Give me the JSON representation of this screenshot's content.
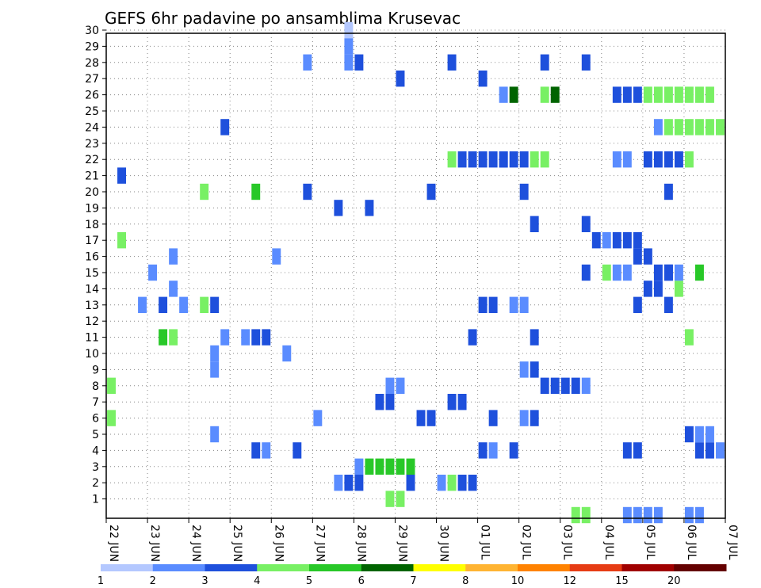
{
  "chart_data": {
    "type": "heatmap",
    "title": "GEFS 6hr padavine po ansamblima Krusevac",
    "xlabel": "",
    "ylabel": "",
    "x_ticks": [
      "22 JUN",
      "23 JUN",
      "24 JUN",
      "25 JUN",
      "26 JUN",
      "27 JUN",
      "28 JUN",
      "29 JUN",
      "30 JUN",
      "01 JUL",
      "02 JUL",
      "03 JUL",
      "04 JUL",
      "05 JUL",
      "06 JUL",
      "07 JUL"
    ],
    "y_ticks": [
      1,
      2,
      3,
      4,
      5,
      6,
      7,
      8,
      9,
      10,
      11,
      12,
      13,
      14,
      15,
      16,
      17,
      18,
      19,
      20,
      21,
      22,
      23,
      24,
      25,
      26,
      27,
      28,
      29,
      30
    ],
    "xlim": [
      0,
      60
    ],
    "ylim": [
      0,
      30
    ],
    "grid": true,
    "colorbar": {
      "labels": [
        "1",
        "2",
        "3",
        "4",
        "5",
        "6",
        "7",
        "8",
        "10",
        "12",
        "15",
        "20"
      ],
      "colors": [
        "#b4c8ff",
        "#5a8cff",
        "#1e50dc",
        "#78f064",
        "#28c828",
        "#006400",
        "#ffff00",
        "#ffb432",
        "#ff8200",
        "#e63c14",
        "#a00000",
        "#640000"
      ]
    },
    "cells": [
      [
        23,
        29,
        1
      ],
      [
        23,
        30,
        0
      ],
      [
        19,
        28,
        1
      ],
      [
        23,
        28,
        1
      ],
      [
        24,
        28,
        2
      ],
      [
        33,
        28,
        2
      ],
      [
        42,
        28,
        2
      ],
      [
        46,
        28,
        2
      ],
      [
        28,
        27,
        2
      ],
      [
        36,
        27,
        2
      ],
      [
        38,
        26,
        1
      ],
      [
        39,
        26,
        5
      ],
      [
        42,
        26,
        3
      ],
      [
        43,
        26,
        5
      ],
      [
        11,
        24,
        2
      ],
      [
        1,
        21,
        2
      ],
      [
        9,
        20,
        3
      ],
      [
        14,
        20,
        4
      ],
      [
        19,
        20,
        2
      ],
      [
        31,
        20,
        2
      ],
      [
        40,
        20,
        2
      ],
      [
        54,
        20,
        2
      ],
      [
        25,
        19,
        2
      ],
      [
        22,
        19,
        2
      ],
      [
        41,
        18,
        2
      ],
      [
        46,
        18,
        2
      ],
      [
        1,
        17,
        3
      ],
      [
        16,
        16,
        1
      ],
      [
        6,
        16,
        1
      ],
      [
        4,
        15,
        1
      ],
      [
        6,
        14,
        1
      ],
      [
        5,
        13,
        2
      ],
      [
        3,
        13,
        1
      ],
      [
        7,
        13,
        1
      ],
      [
        9,
        13,
        3
      ],
      [
        10,
        13,
        2
      ],
      [
        13,
        11,
        1
      ],
      [
        11,
        11,
        1
      ],
      [
        5,
        11,
        4
      ],
      [
        6,
        11,
        3
      ],
      [
        14,
        11,
        2
      ],
      [
        15,
        11,
        2
      ],
      [
        0,
        8,
        3
      ],
      [
        10,
        9,
        1
      ],
      [
        10,
        10,
        1
      ],
      [
        17,
        10,
        1
      ],
      [
        0,
        6,
        3
      ],
      [
        20,
        6,
        1
      ],
      [
        14,
        4,
        2
      ],
      [
        15,
        4,
        1
      ],
      [
        10,
        5,
        1
      ],
      [
        18,
        4,
        2
      ],
      [
        24,
        3,
        1
      ],
      [
        25,
        3,
        4
      ],
      [
        26,
        3,
        4
      ],
      [
        27,
        3,
        4
      ],
      [
        28,
        3,
        4
      ],
      [
        29,
        3,
        4
      ],
      [
        22,
        2,
        1
      ],
      [
        23,
        2,
        2
      ],
      [
        24,
        2,
        2
      ],
      [
        29,
        2,
        2
      ],
      [
        27,
        1,
        3
      ],
      [
        28,
        1,
        3
      ],
      [
        33,
        2,
        3
      ],
      [
        32,
        2,
        1
      ],
      [
        34,
        2,
        2
      ],
      [
        35,
        2,
        2
      ],
      [
        30,
        6,
        2
      ],
      [
        31,
        6,
        2
      ],
      [
        26,
        7,
        2
      ],
      [
        27,
        7,
        2
      ],
      [
        33,
        7,
        2
      ],
      [
        34,
        7,
        2
      ],
      [
        37,
        6,
        2
      ],
      [
        40,
        6,
        1
      ],
      [
        41,
        6,
        2
      ],
      [
        39,
        4,
        2
      ],
      [
        37,
        4,
        1
      ],
      [
        36,
        4,
        2
      ],
      [
        56,
        0,
        1
      ],
      [
        57,
        0,
        1
      ],
      [
        50,
        0,
        1
      ],
      [
        51,
        0,
        1
      ],
      [
        46,
        0,
        3
      ],
      [
        45,
        0,
        3
      ],
      [
        52,
        0,
        1
      ],
      [
        53,
        0,
        1
      ],
      [
        57,
        4,
        2
      ],
      [
        58,
        4,
        2
      ],
      [
        59,
        4,
        1
      ],
      [
        51,
        4,
        2
      ],
      [
        50,
        4,
        2
      ],
      [
        56,
        5,
        2
      ],
      [
        57,
        5,
        1
      ],
      [
        58,
        5,
        1
      ],
      [
        27,
        8,
        1
      ],
      [
        28,
        8,
        1
      ],
      [
        42,
        8,
        2
      ],
      [
        43,
        8,
        2
      ],
      [
        44,
        8,
        2
      ],
      [
        45,
        8,
        2
      ],
      [
        46,
        8,
        1
      ],
      [
        41,
        9,
        2
      ],
      [
        40,
        9,
        1
      ],
      [
        41,
        11,
        2
      ],
      [
        35,
        11,
        2
      ],
      [
        56,
        11,
        3
      ],
      [
        36,
        13,
        2
      ],
      [
        37,
        13,
        2
      ],
      [
        39,
        13,
        1
      ],
      [
        40,
        13,
        1
      ],
      [
        51,
        13,
        2
      ],
      [
        54,
        13,
        2
      ],
      [
        52,
        14,
        2
      ],
      [
        53,
        14,
        2
      ],
      [
        55,
        14,
        3
      ],
      [
        54,
        15,
        2
      ],
      [
        55,
        15,
        1
      ],
      [
        57,
        15,
        4
      ],
      [
        53,
        15,
        2
      ],
      [
        46,
        15,
        2
      ],
      [
        54,
        15,
        2
      ],
      [
        48,
        15,
        3
      ],
      [
        49,
        15,
        1
      ],
      [
        50,
        15,
        1
      ],
      [
        51,
        16,
        2
      ],
      [
        52,
        16,
        2
      ],
      [
        47,
        17,
        2
      ],
      [
        48,
        17,
        1
      ],
      [
        49,
        17,
        2
      ],
      [
        50,
        17,
        2
      ],
      [
        51,
        17,
        2
      ],
      [
        38,
        22,
        2
      ],
      [
        41,
        22,
        3
      ],
      [
        42,
        22,
        3
      ],
      [
        49,
        22,
        1
      ],
      [
        50,
        22,
        1
      ],
      [
        52,
        22,
        2
      ],
      [
        53,
        22,
        2
      ],
      [
        54,
        22,
        2
      ],
      [
        55,
        22,
        2
      ],
      [
        56,
        22,
        3
      ],
      [
        33,
        22,
        3
      ],
      [
        34,
        22,
        2
      ],
      [
        35,
        22,
        2
      ],
      [
        36,
        22,
        2
      ],
      [
        37,
        22,
        2
      ],
      [
        38,
        22,
        2
      ],
      [
        39,
        22,
        2
      ],
      [
        40,
        22,
        2
      ],
      [
        53,
        24,
        1
      ],
      [
        54,
        24,
        3
      ],
      [
        55,
        24,
        3
      ],
      [
        56,
        24,
        3
      ],
      [
        57,
        24,
        3
      ],
      [
        58,
        24,
        3
      ],
      [
        59,
        24,
        3
      ],
      [
        49,
        26,
        2
      ],
      [
        50,
        26,
        2
      ],
      [
        51,
        26,
        2
      ],
      [
        52,
        26,
        3
      ],
      [
        53,
        26,
        3
      ],
      [
        54,
        26,
        3
      ],
      [
        55,
        26,
        3
      ],
      [
        56,
        26,
        3
      ],
      [
        57,
        26,
        3
      ],
      [
        58,
        26,
        3
      ]
    ]
  }
}
